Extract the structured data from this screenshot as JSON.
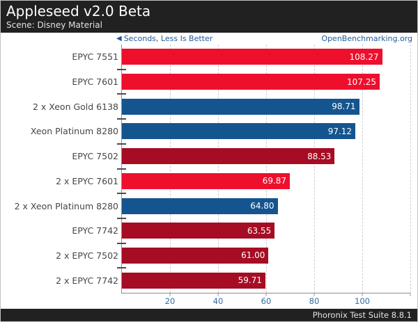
{
  "chart_data": {
    "type": "bar",
    "orientation": "horizontal",
    "title": "Appleseed v2.0 Beta",
    "subtitle": "Scene: Disney Material",
    "axis_note": "Seconds, Less Is Better",
    "watermark": "OpenBenchmarking.org",
    "footer": "Phoronix Test Suite 8.8.1",
    "unit": "Seconds",
    "lower_is_better": true,
    "categories": [
      "EPYC 7551",
      "EPYC 7601",
      "2 x Xeon Gold 6138",
      "Xeon Platinum 8280",
      "EPYC 7502",
      "2 x EPYC 7601",
      "2 x Xeon Platinum 8280",
      "EPYC 7742",
      "2 x EPYC 7502",
      "2 x EPYC 7742"
    ],
    "values": [
      108.27,
      107.25,
      98.71,
      97.12,
      88.53,
      69.87,
      64.8,
      63.55,
      61.0,
      59.71
    ],
    "bar_colors": [
      "bright_red",
      "bright_red",
      "blue",
      "blue",
      "dark_red",
      "bright_red",
      "blue",
      "dark_red",
      "dark_red",
      "dark_red"
    ],
    "xlim": [
      0,
      120
    ],
    "x_ticks": [
      20,
      40,
      60,
      80,
      100
    ],
    "x_gridlines": [
      20,
      40,
      60,
      80,
      100,
      120
    ],
    "grid": "vertical-dashed",
    "value_labels": "inside-right",
    "legend_position": "none"
  },
  "colors": {
    "bright_red": "#ee0f2d",
    "dark_red": "#a60c23",
    "blue": "#15558f",
    "header_bg": "#212121",
    "link_blue": "#1d5a9b",
    "tick_blue": "#2f6ca5",
    "grid_gray": "#cdcdcd",
    "axis_gray": "#8c8c8c"
  }
}
